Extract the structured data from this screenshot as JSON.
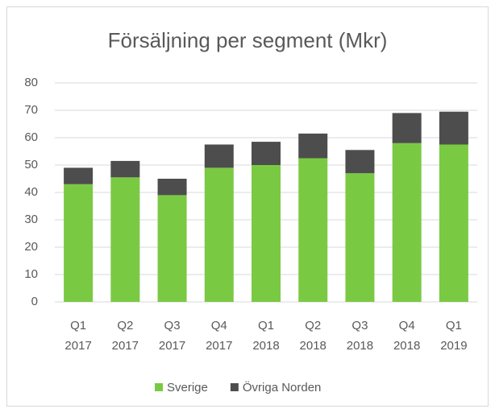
{
  "chart_data": {
    "type": "stacked_bar",
    "title": "Försäljning per segment (Mkr)",
    "categories": [
      [
        "Q1",
        "2017"
      ],
      [
        "Q2",
        "2017"
      ],
      [
        "Q3",
        "2017"
      ],
      [
        "Q4",
        "2017"
      ],
      [
        "Q1",
        "2018"
      ],
      [
        "Q2",
        "2018"
      ],
      [
        "Q3",
        "2018"
      ],
      [
        "Q4",
        "2018"
      ],
      [
        "Q1",
        "2019"
      ]
    ],
    "series": [
      {
        "name": "Sverige",
        "color": "#7ac943",
        "values": [
          43,
          45.5,
          39,
          49,
          50,
          52.5,
          47,
          58,
          57.5
        ]
      },
      {
        "name": "Övriga Norden",
        "color": "#4d4d4d",
        "values": [
          6,
          6,
          6,
          8.5,
          8.5,
          9,
          8.5,
          11,
          12
        ]
      }
    ],
    "ylim": [
      0,
      80
    ],
    "yticks": [
      0,
      10,
      20,
      30,
      40,
      50,
      60,
      70,
      80
    ],
    "grid": true,
    "legend": "bottom"
  }
}
